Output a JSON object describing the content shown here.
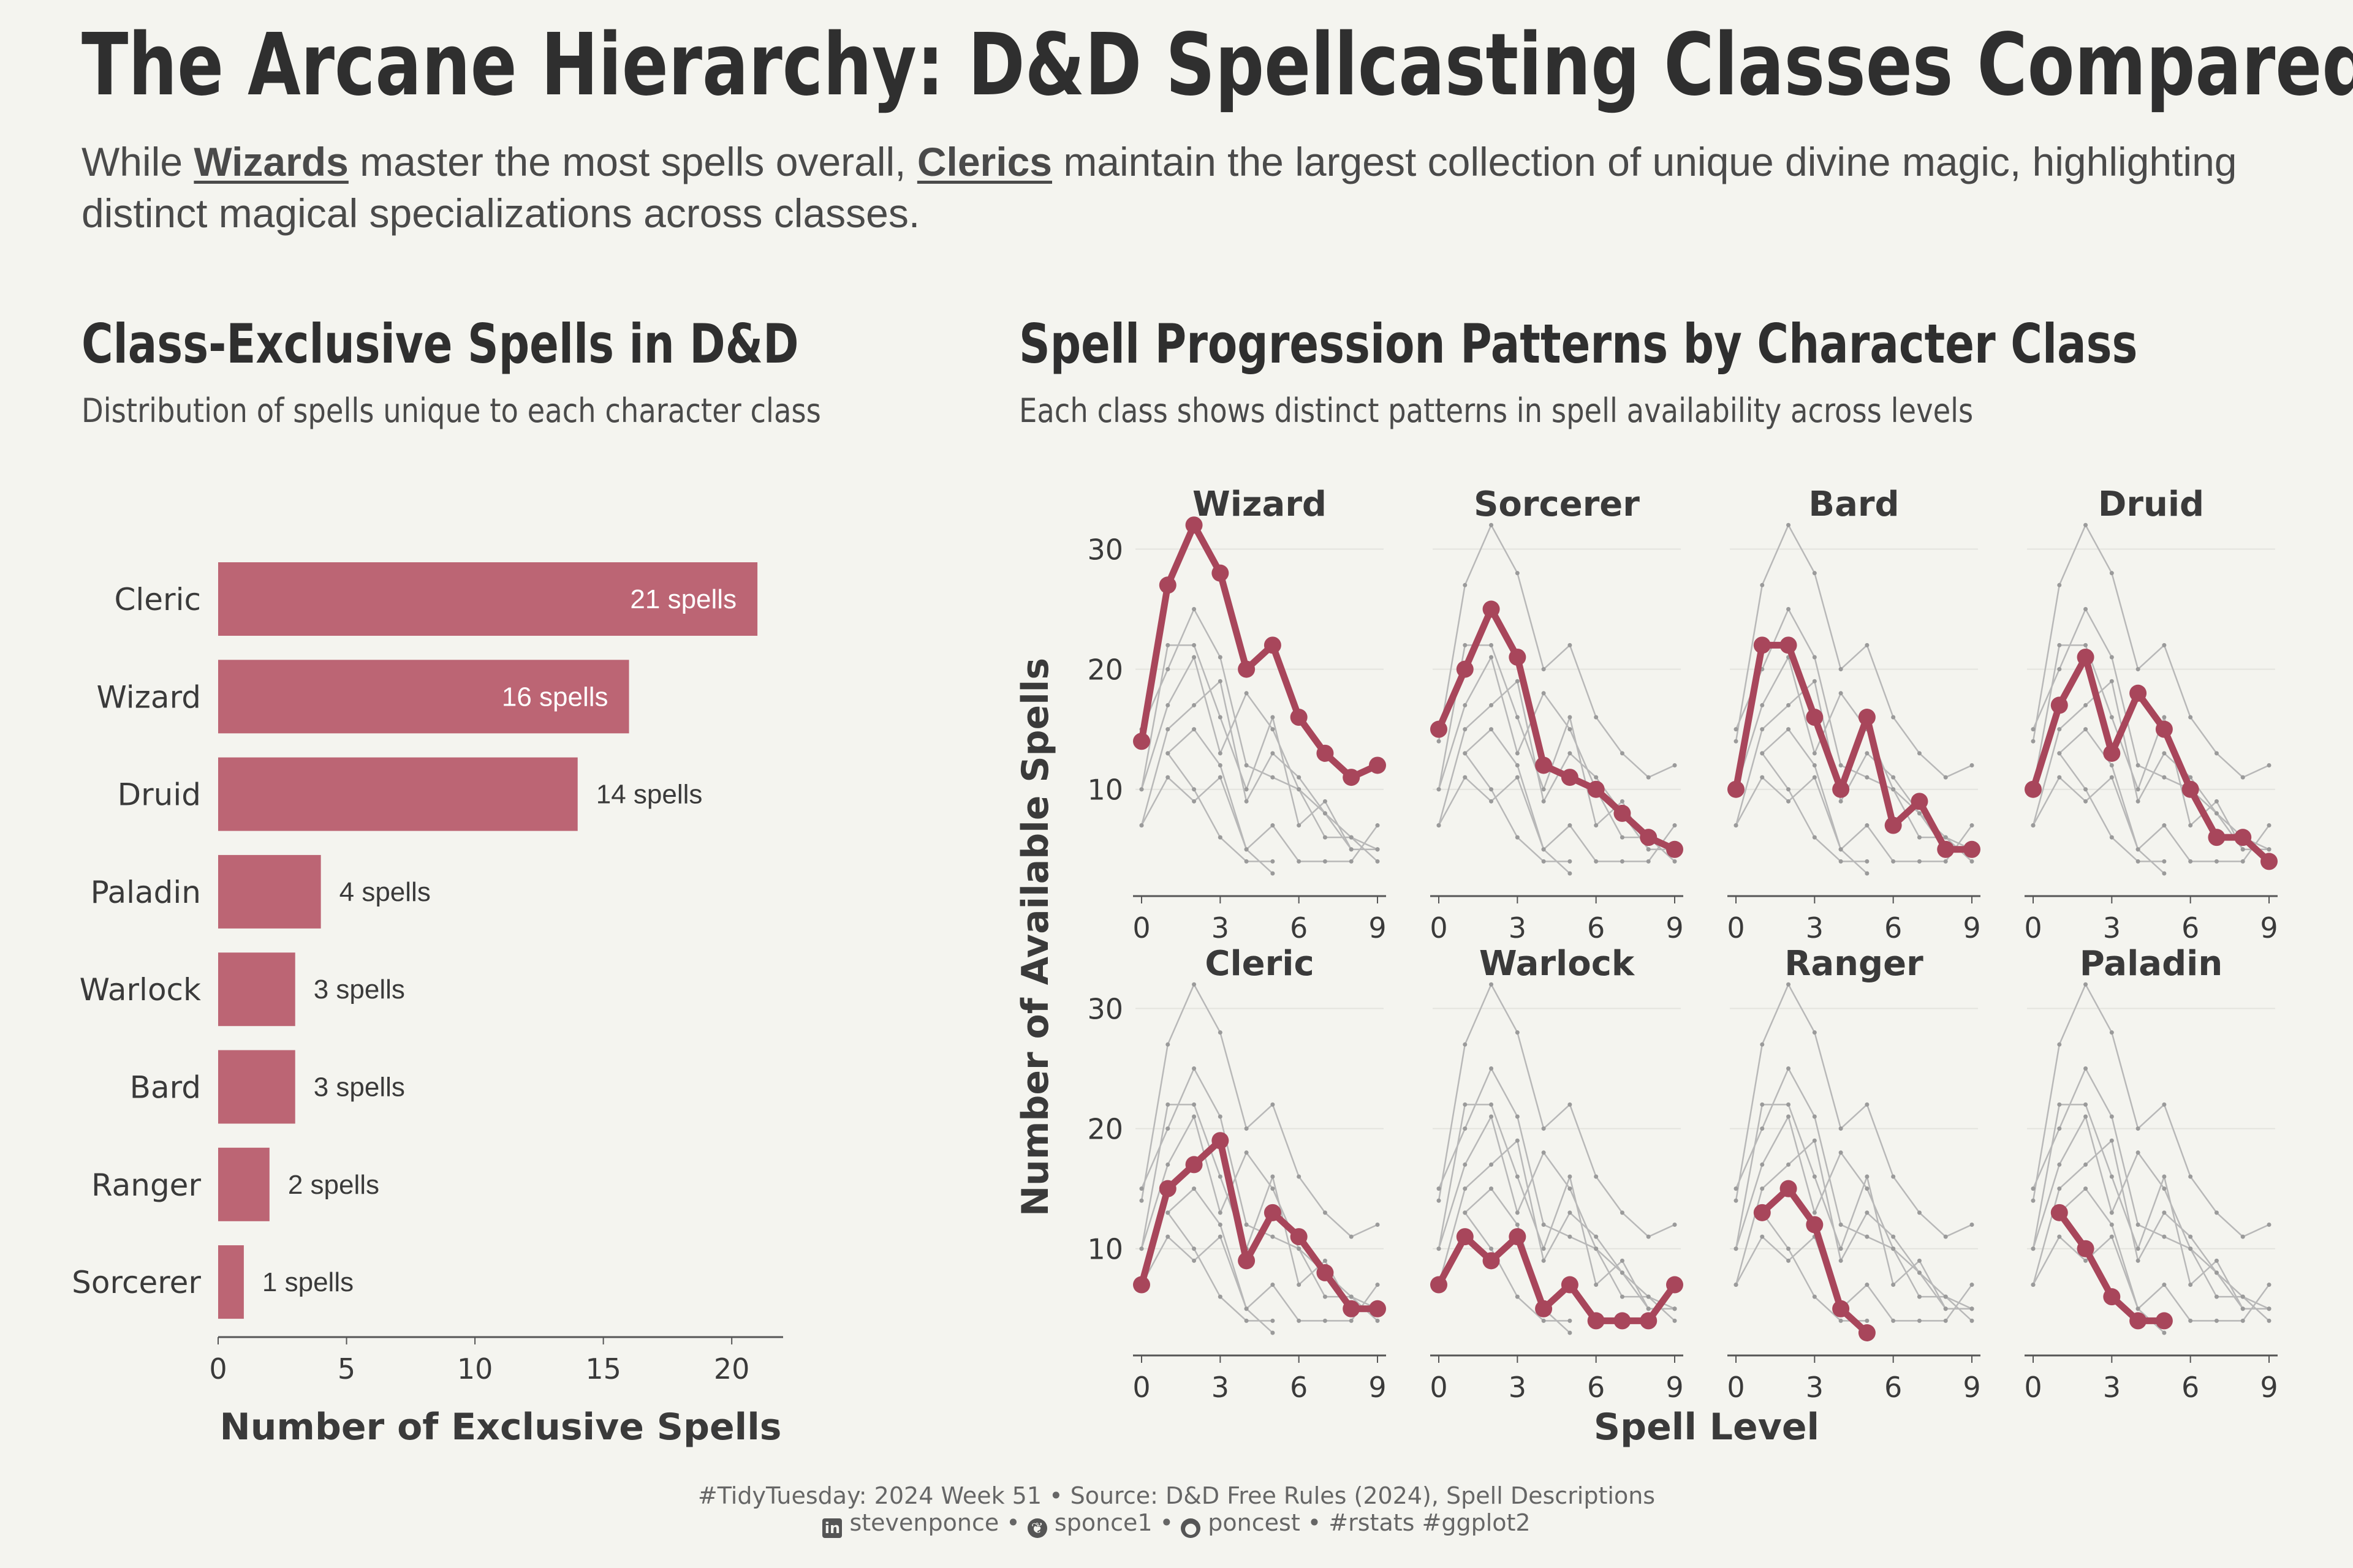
{
  "header": {
    "title": "The Arcane Hierarchy: D&D Spellcasting Classes Compared",
    "subtitle_parts": {
      "p1": "While ",
      "wizards": "Wizards",
      "p2": " master the most spells overall, ",
      "clerics": "Clerics",
      "p3": " maintain the largest collection of unique divine magic, highlighting distinct magical specializations across classes."
    }
  },
  "colors": {
    "accent": "#a8465b",
    "bar": "#bc6574",
    "background": "#f4f4ef",
    "context_line": "#b8b8b8",
    "axis": "#555555"
  },
  "left_panel": {
    "title": "Class-Exclusive Spells in D&D",
    "subtitle": "Distribution of spells unique to each character class"
  },
  "right_panel": {
    "title": "Spell Progression Patterns by Character Class",
    "subtitle": "Each class shows distinct patterns in spell availability across levels"
  },
  "chart_data": [
    {
      "type": "bar",
      "orientation": "horizontal",
      "title": "Class-Exclusive Spells in D&D",
      "subtitle": "Distribution of spells unique to each character class",
      "xlabel": "Number of Exclusive Spells",
      "ylabel": "",
      "xlim": [
        0,
        22
      ],
      "xticks": [
        0,
        5,
        10,
        15,
        20
      ],
      "categories": [
        "Cleric",
        "Wizard",
        "Druid",
        "Paladin",
        "Warlock",
        "Bard",
        "Ranger",
        "Sorcerer"
      ],
      "values": [
        21,
        16,
        14,
        4,
        3,
        3,
        2,
        1
      ],
      "data_labels": [
        "21 spells",
        "16 spells",
        "14 spells",
        "4 spells",
        "3 spells",
        "3 spells",
        "2 spells",
        "1 spells"
      ],
      "grid": false
    },
    {
      "type": "line",
      "layout": "small-multiples 2x4",
      "title": "Spell Progression Patterns by Character Class",
      "subtitle": "Each class shows distinct patterns in spell availability across levels",
      "xlabel": "Spell Level",
      "ylabel": "Number of Available Spells",
      "xlim": [
        0,
        9
      ],
      "ylim": [
        3,
        34
      ],
      "xticks": [
        0,
        3,
        6,
        9
      ],
      "yticks": [
        10,
        20,
        30
      ],
      "grid": "horizontal",
      "series": [
        {
          "name": "Wizard",
          "x": [
            0,
            1,
            2,
            3,
            4,
            5,
            6,
            7,
            8,
            9
          ],
          "values": [
            14,
            27,
            32,
            28,
            20,
            22,
            16,
            13,
            11,
            12
          ]
        },
        {
          "name": "Sorcerer",
          "x": [
            0,
            1,
            2,
            3,
            4,
            5,
            6,
            7,
            8,
            9
          ],
          "values": [
            15,
            20,
            25,
            21,
            12,
            11,
            10,
            8,
            6,
            5
          ]
        },
        {
          "name": "Bard",
          "x": [
            0,
            1,
            2,
            3,
            4,
            5,
            6,
            7,
            8,
            9
          ],
          "values": [
            10,
            22,
            22,
            16,
            10,
            16,
            7,
            9,
            5,
            5
          ]
        },
        {
          "name": "Druid",
          "x": [
            0,
            1,
            2,
            3,
            4,
            5,
            6,
            7,
            8,
            9
          ],
          "values": [
            10,
            17,
            21,
            13,
            18,
            15,
            10,
            6,
            6,
            4
          ]
        },
        {
          "name": "Cleric",
          "x": [
            0,
            1,
            2,
            3,
            4,
            5,
            6,
            7,
            8,
            9
          ],
          "values": [
            7,
            15,
            17,
            19,
            9,
            13,
            11,
            8,
            5,
            5
          ]
        },
        {
          "name": "Warlock",
          "x": [
            0,
            1,
            2,
            3,
            4,
            5,
            6,
            7,
            8,
            9
          ],
          "values": [
            7,
            11,
            9,
            11,
            5,
            7,
            4,
            4,
            4,
            7
          ]
        },
        {
          "name": "Ranger",
          "x": [
            1,
            2,
            3,
            4,
            5
          ],
          "values": [
            13,
            15,
            12,
            5,
            3
          ]
        },
        {
          "name": "Paladin",
          "x": [
            1,
            2,
            3,
            4,
            5
          ],
          "values": [
            13,
            10,
            6,
            4,
            4
          ]
        }
      ]
    }
  ],
  "caption": {
    "line1": "#TidyTuesday: 2024 Week 51 • Source: D&D Free Rules (2024), Spell Descriptions",
    "linkedin_icon": "linkedin-icon",
    "linkedin": "stevenponce •",
    "bluesky_icon": "butterfly-icon",
    "bluesky": "sponce1 •",
    "github_icon": "github-icon",
    "github": "poncest • #rstats #ggplot2"
  }
}
